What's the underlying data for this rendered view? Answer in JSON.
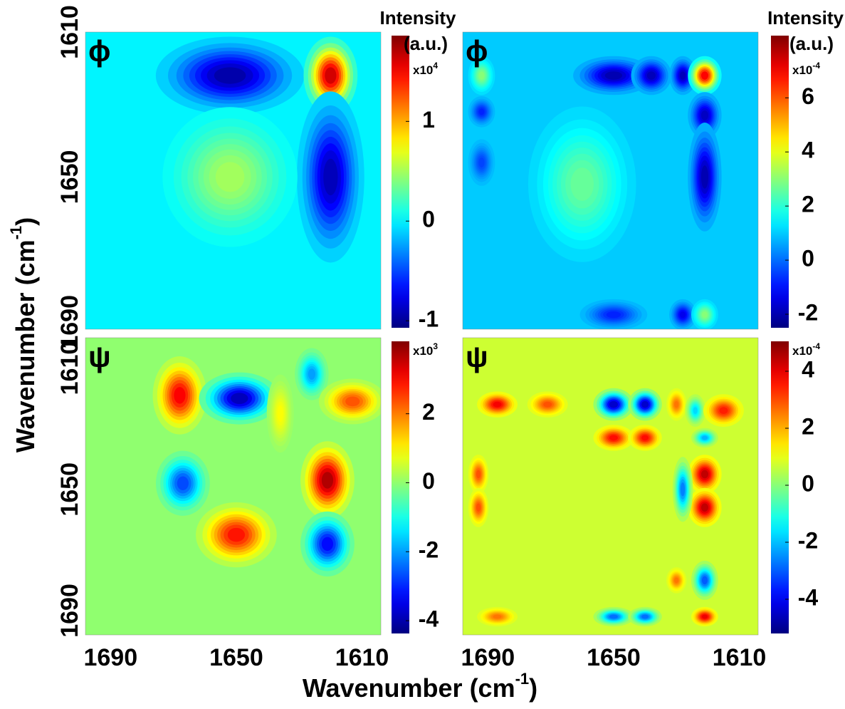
{
  "figure": {
    "x_label": "Wavenumber (cm",
    "x_label_sup": "-1",
    "x_label_end": ")",
    "y_label": "Wavenumber (cm",
    "y_label_sup": "-1",
    "y_label_end": ")"
  },
  "chart_data": [
    {
      "type": "contour",
      "title": "ϕ",
      "xlim": [
        1698,
        1604
      ],
      "ylim": [
        1610,
        1692
      ],
      "yticks": [
        1610,
        1650,
        1690
      ],
      "clim": [
        -1.07,
        1.86
      ],
      "cticks": [
        -1,
        0,
        1
      ],
      "colorbar_title": "Intensity",
      "colorbar_unit": "(a.u.)",
      "colorbar_scale": "x10",
      "colorbar_exp": "4",
      "background": 0,
      "peaks": [
        {
          "x": 1652,
          "y": 1622,
          "value": -1.05,
          "sx": 11,
          "sy": 5
        },
        {
          "x": 1620,
          "y": 1622,
          "value": 1.8,
          "sx": 4,
          "sy": 5
        },
        {
          "x": 1620,
          "y": 1650,
          "value": -1.0,
          "sx": 5,
          "sy": 11
        },
        {
          "x": 1652,
          "y": 1650,
          "value": 0.55,
          "sx": 10,
          "sy": 9
        }
      ]
    },
    {
      "type": "contour",
      "title": "ϕ",
      "xlim": [
        1698,
        1604
      ],
      "ylim": [
        1610,
        1692
      ],
      "clim": [
        -2.5,
        8.3
      ],
      "cticks": [
        -2,
        0,
        2,
        4,
        6
      ],
      "colorbar_title": "Intensity",
      "colorbar_unit": "(a.u.)",
      "colorbar_scale": "x10",
      "colorbar_exp": "-4",
      "background": 1.0,
      "peaks": [
        {
          "x": 1660,
          "y": 1652,
          "value": 2.8,
          "sx": 8,
          "sy": 10
        },
        {
          "x": 1692,
          "y": 1622,
          "value": 3.2,
          "sx": 2,
          "sy": 2.5
        },
        {
          "x": 1650,
          "y": 1622,
          "value": -2.3,
          "sx": 6,
          "sy": 2.5
        },
        {
          "x": 1638,
          "y": 1622,
          "value": -2.2,
          "sx": 3,
          "sy": 2.5
        },
        {
          "x": 1628,
          "y": 1622,
          "value": -2.2,
          "sx": 2,
          "sy": 2.5
        },
        {
          "x": 1621,
          "y": 1622,
          "value": 7.6,
          "sx": 2.5,
          "sy": 2.5
        },
        {
          "x": 1621,
          "y": 1633,
          "value": -2.1,
          "sx": 2.5,
          "sy": 3
        },
        {
          "x": 1621,
          "y": 1650,
          "value": -2.3,
          "sx": 2.5,
          "sy": 7
        },
        {
          "x": 1692,
          "y": 1632,
          "value": -1.0,
          "sx": 2,
          "sy": 2
        },
        {
          "x": 1692,
          "y": 1646,
          "value": -0.6,
          "sx": 2,
          "sy": 3
        },
        {
          "x": 1650,
          "y": 1688,
          "value": -1.0,
          "sx": 5,
          "sy": 2
        },
        {
          "x": 1628,
          "y": 1688,
          "value": -1.6,
          "sx": 2,
          "sy": 2
        },
        {
          "x": 1621,
          "y": 1688,
          "value": 3.2,
          "sx": 2,
          "sy": 2
        }
      ]
    },
    {
      "type": "contour",
      "title": "ψ",
      "xlim": [
        1698,
        1604
      ],
      "ylim": [
        1600,
        1698
      ],
      "xticks": [
        1690,
        1650,
        1610
      ],
      "yticks": [
        1610,
        1650,
        1690
      ],
      "clim": [
        -4.37,
        4.1
      ],
      "cticks": [
        -4,
        -2,
        0,
        2
      ],
      "colorbar_scale": "x10",
      "colorbar_exp": "3",
      "background": 0,
      "peaks": [
        {
          "x": 1668,
          "y": 1619,
          "value": 3.4,
          "sx": 4,
          "sy": 6
        },
        {
          "x": 1649,
          "y": 1620,
          "value": -4.3,
          "sx": 6,
          "sy": 4
        },
        {
          "x": 1626,
          "y": 1612,
          "value": -2.2,
          "sx": 2.5,
          "sy": 4
        },
        {
          "x": 1613,
          "y": 1621,
          "value": 2.6,
          "sx": 5,
          "sy": 3.5
        },
        {
          "x": 1667,
          "y": 1648,
          "value": -3.0,
          "sx": 4,
          "sy": 5
        },
        {
          "x": 1621,
          "y": 1647,
          "value": 4.1,
          "sx": 4,
          "sy": 6
        },
        {
          "x": 1650,
          "y": 1665,
          "value": 3.2,
          "sx": 6,
          "sy": 5
        },
        {
          "x": 1621,
          "y": 1668,
          "value": -3.6,
          "sx": 4,
          "sy": 5
        },
        {
          "x": 1636,
          "y": 1625,
          "value": 1.0,
          "sx": 2,
          "sy": 6
        }
      ]
    },
    {
      "type": "contour",
      "title": "ψ",
      "xlim": [
        1698,
        1604
      ],
      "ylim": [
        1600,
        1698
      ],
      "xticks": [
        1690,
        1650,
        1610
      ],
      "clim": [
        -5.2,
        5.05
      ],
      "cticks": [
        -4,
        -2,
        0,
        2,
        4
      ],
      "colorbar_scale": "x10",
      "colorbar_exp": "-4",
      "background": 0.7,
      "peaks": [
        {
          "x": 1687,
          "y": 1622,
          "value": 4.2,
          "sx": 3,
          "sy": 2
        },
        {
          "x": 1671,
          "y": 1622,
          "value": 3.2,
          "sx": 3,
          "sy": 2
        },
        {
          "x": 1650,
          "y": 1622,
          "value": -5.0,
          "sx": 3,
          "sy": 2.5
        },
        {
          "x": 1640,
          "y": 1622,
          "value": -5.0,
          "sx": 2.5,
          "sy": 2.5
        },
        {
          "x": 1630,
          "y": 1622,
          "value": 2.8,
          "sx": 1.5,
          "sy": 2.5
        },
        {
          "x": 1624,
          "y": 1624,
          "value": -2.0,
          "sx": 1.5,
          "sy": 2.5
        },
        {
          "x": 1615,
          "y": 1624,
          "value": 3.8,
          "sx": 3,
          "sy": 2.5
        },
        {
          "x": 1650,
          "y": 1633,
          "value": 4.0,
          "sx": 3,
          "sy": 2
        },
        {
          "x": 1640,
          "y": 1633,
          "value": 4.0,
          "sx": 2.5,
          "sy": 2
        },
        {
          "x": 1621,
          "y": 1633,
          "value": -2.4,
          "sx": 2,
          "sy": 1.5
        },
        {
          "x": 1621,
          "y": 1645,
          "value": 4.8,
          "sx": 2.5,
          "sy": 3
        },
        {
          "x": 1621,
          "y": 1656,
          "value": 4.8,
          "sx": 2.5,
          "sy": 3
        },
        {
          "x": 1628,
          "y": 1650,
          "value": -3.0,
          "sx": 1.5,
          "sy": 5
        },
        {
          "x": 1693,
          "y": 1645,
          "value": 3.2,
          "sx": 1.5,
          "sy": 3
        },
        {
          "x": 1693,
          "y": 1656,
          "value": 3.2,
          "sx": 1.5,
          "sy": 3
        },
        {
          "x": 1621,
          "y": 1680,
          "value": -3.4,
          "sx": 2,
          "sy": 3
        },
        {
          "x": 1630,
          "y": 1680,
          "value": 2.8,
          "sx": 1.5,
          "sy": 2
        },
        {
          "x": 1687,
          "y": 1692,
          "value": 2.8,
          "sx": 3,
          "sy": 1.5
        },
        {
          "x": 1650,
          "y": 1692,
          "value": -3.2,
          "sx": 3,
          "sy": 1.5
        },
        {
          "x": 1640,
          "y": 1692,
          "value": -3.2,
          "sx": 2.5,
          "sy": 1.5
        },
        {
          "x": 1621,
          "y": 1692,
          "value": 4.3,
          "sx": 2,
          "sy": 1.5
        }
      ]
    }
  ]
}
